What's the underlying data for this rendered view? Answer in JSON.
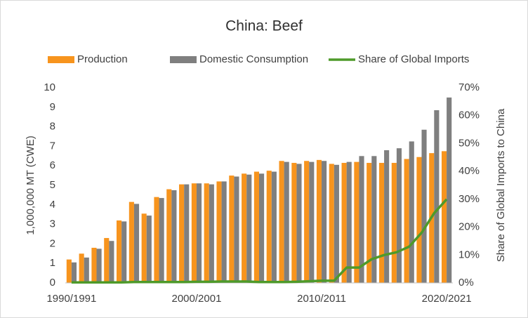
{
  "chart_data": {
    "type": "bar",
    "title": "China: Beef",
    "categories": [
      "1990/1991",
      null,
      null,
      null,
      null,
      null,
      null,
      null,
      null,
      null,
      "2000/2001",
      null,
      null,
      null,
      null,
      null,
      null,
      null,
      null,
      null,
      "2010/2011",
      null,
      null,
      null,
      null,
      null,
      null,
      null,
      null,
      null,
      "2020/2021"
    ],
    "series": [
      {
        "name": "Production",
        "type": "bar",
        "color": "#f7941d",
        "values": [
          1.2,
          1.5,
          1.8,
          2.3,
          3.2,
          4.15,
          3.55,
          4.4,
          4.8,
          5.05,
          5.1,
          5.1,
          5.2,
          5.5,
          5.6,
          5.7,
          5.75,
          6.25,
          6.15,
          6.25,
          6.3,
          6.1,
          6.15,
          6.2,
          6.15,
          6.15,
          6.15,
          6.35,
          6.45,
          6.65,
          6.75
        ]
      },
      {
        "name": "Domestic Consumption",
        "type": "bar",
        "color": "#7f7f7f",
        "values": [
          1.05,
          1.3,
          1.75,
          2.15,
          3.15,
          4.05,
          3.45,
          4.35,
          4.75,
          5.05,
          5.1,
          5.05,
          5.2,
          5.45,
          5.55,
          5.6,
          5.7,
          6.2,
          6.1,
          6.2,
          6.25,
          6.05,
          6.2,
          6.5,
          6.5,
          6.8,
          6.9,
          7.25,
          7.85,
          8.85,
          9.5
        ]
      },
      {
        "name": "Share of Global Imports",
        "type": "line",
        "axis": "y2",
        "color": "#4e9a2a",
        "values": [
          0.2,
          0.2,
          0.2,
          0.2,
          0.2,
          0.3,
          0.3,
          0.3,
          0.3,
          0.3,
          0.4,
          0.4,
          0.5,
          0.5,
          0.5,
          0.3,
          0.3,
          0.3,
          0.4,
          0.6,
          0.8,
          0.8,
          5.5,
          5.5,
          8.5,
          10,
          11,
          13,
          18,
          25,
          30
        ]
      }
    ],
    "y_label": "1,000,000 MT (CWE)",
    "y2_label": "Share of Global Imports to China",
    "ylim": [
      0,
      10
    ],
    "yticks": [
      0,
      1,
      2,
      3,
      4,
      5,
      6,
      7,
      8,
      9,
      10
    ],
    "y2lim": [
      0,
      70
    ],
    "y2ticks": [
      {
        "value": 0,
        "label": "0%"
      },
      {
        "value": 10,
        "label": "10%"
      },
      {
        "value": 20,
        "label": "20%"
      },
      {
        "value": 30,
        "label": "30%"
      },
      {
        "value": 40,
        "label": "40%"
      },
      {
        "value": 50,
        "label": "50%"
      },
      {
        "value": 60,
        "label": "60%"
      },
      {
        "value": 70,
        "label": "70%"
      }
    ],
    "grid": false,
    "legend": "top"
  }
}
